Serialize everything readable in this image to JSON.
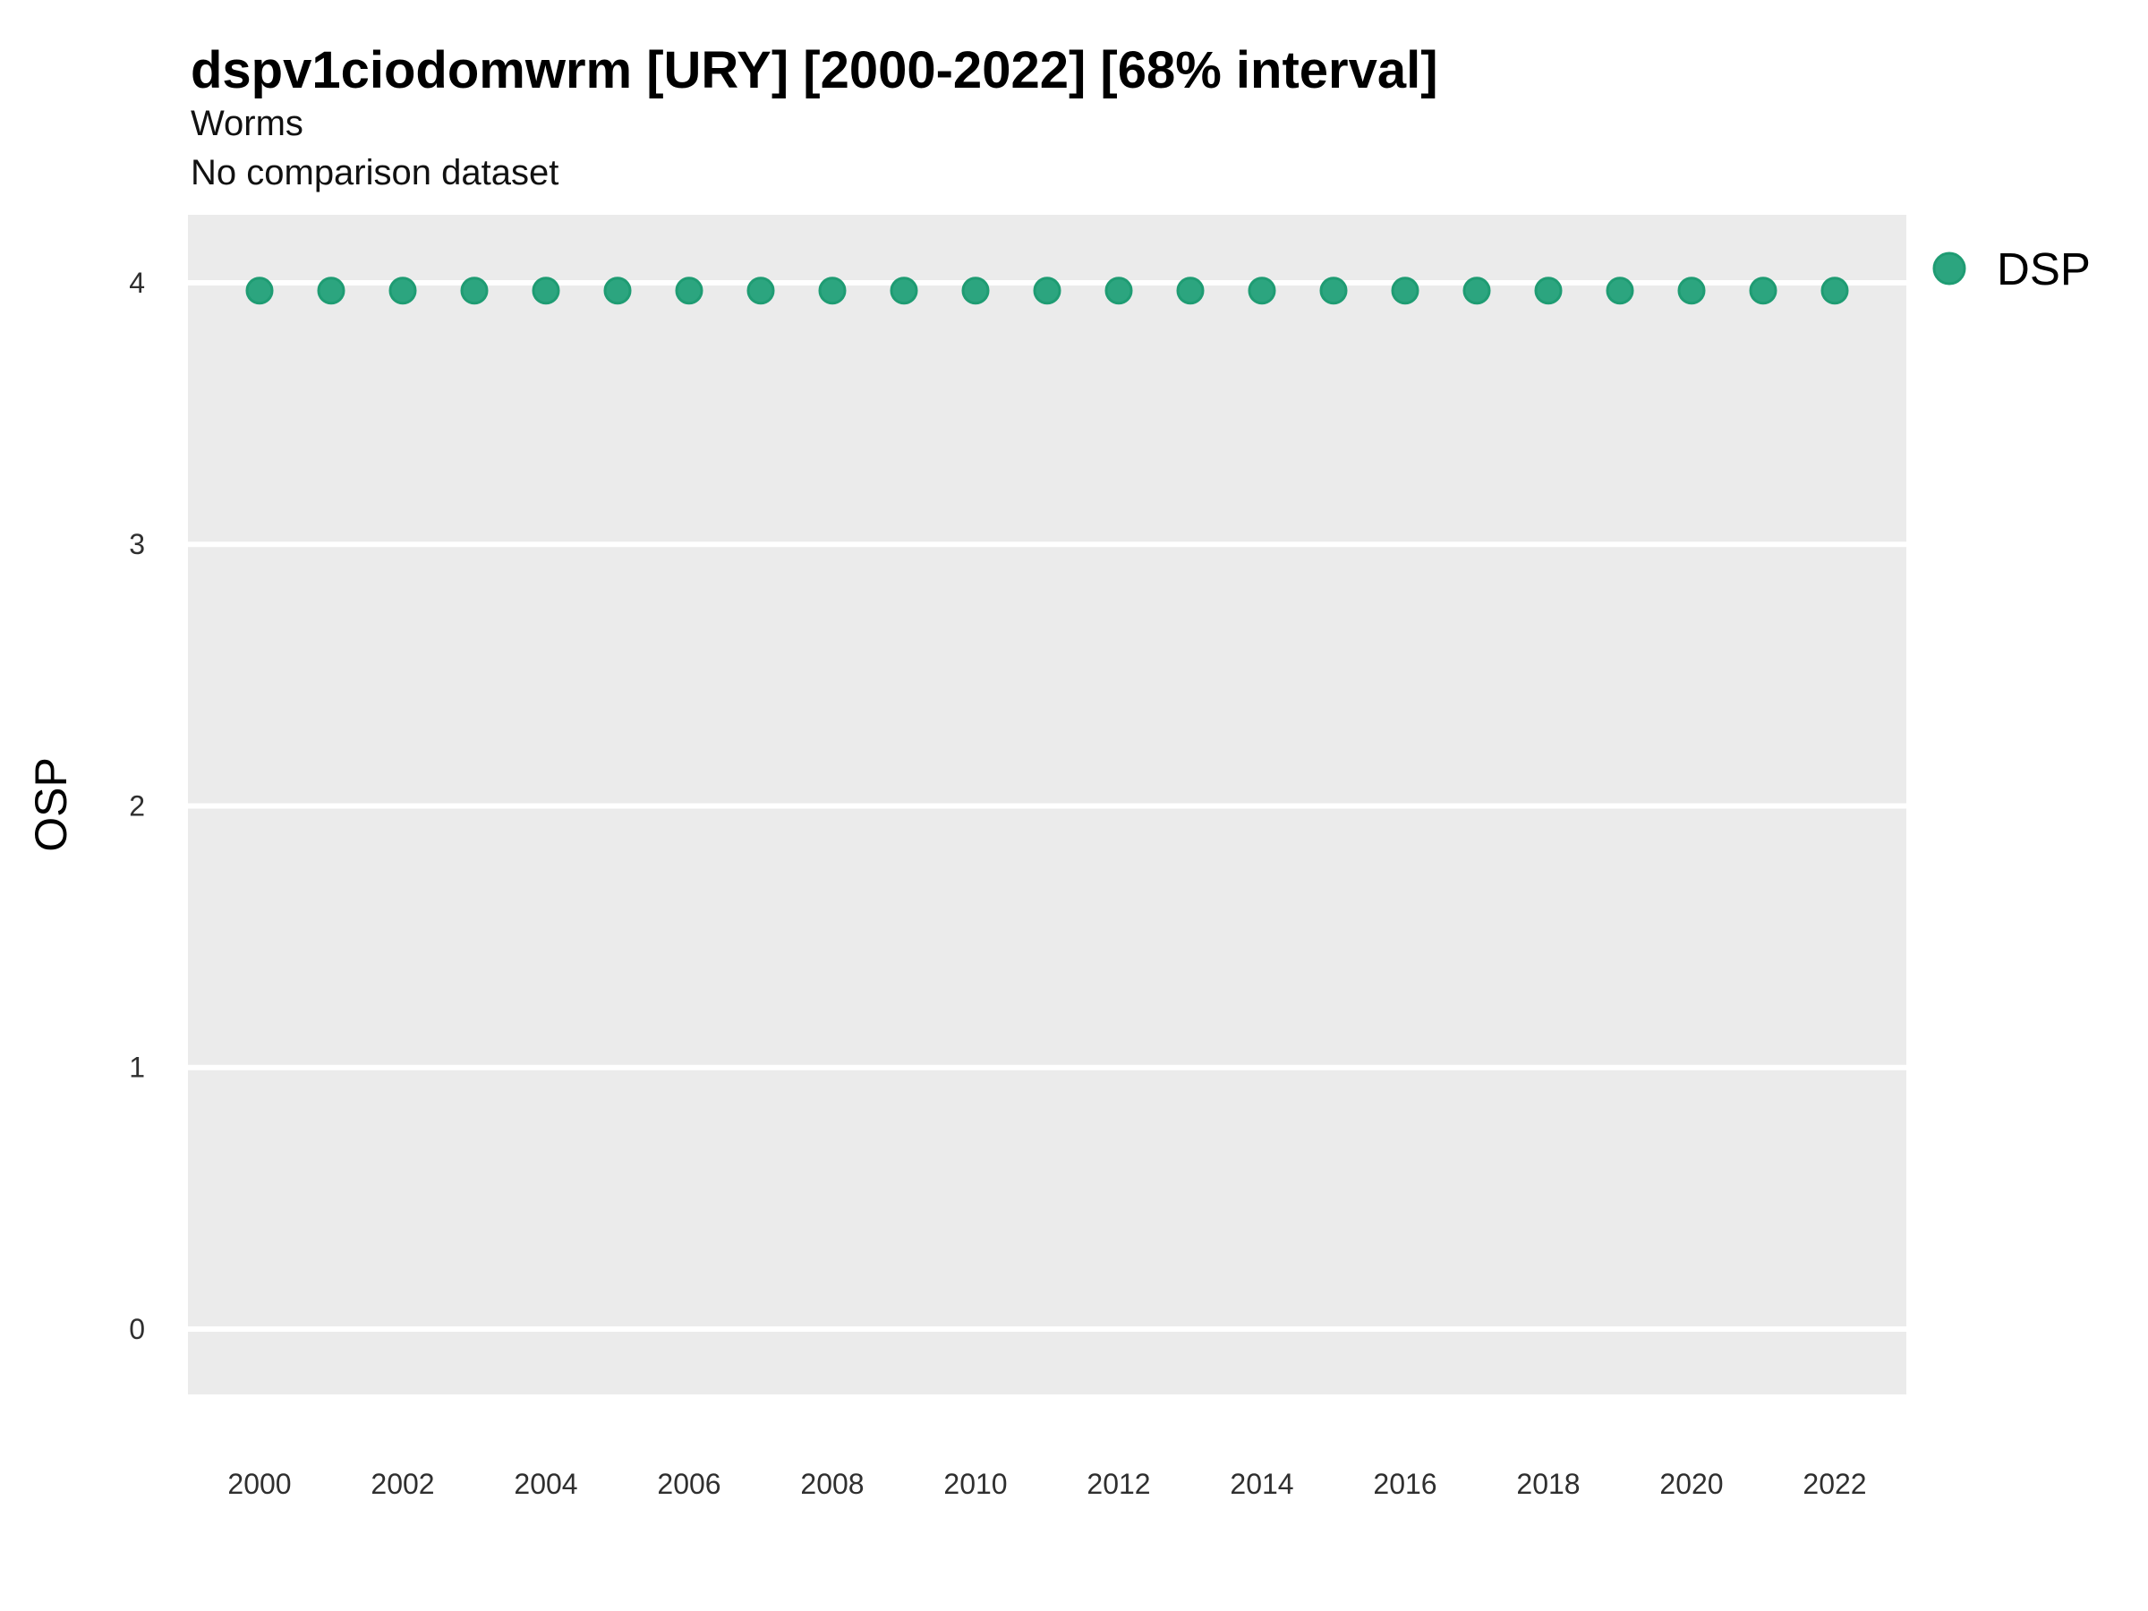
{
  "title": "dspv1ciodomwrm [URY] [2000-2022] [68% interval]",
  "subtitle1": "Worms",
  "subtitle2": "No comparison dataset",
  "legend": {
    "items": [
      {
        "label": "DSP",
        "marker_color": "#2CA57F"
      }
    ]
  },
  "chart_data": {
    "type": "scatter",
    "title": "dspv1ciodomwrm [URY] [2000-2022] [68% interval]",
    "subtitle_lines": [
      "Worms",
      "No comparison dataset"
    ],
    "xlabel": "",
    "ylabel": "OSP",
    "x": [
      2000,
      2001,
      2002,
      2003,
      2004,
      2005,
      2006,
      2007,
      2008,
      2009,
      2010,
      2011,
      2012,
      2013,
      2014,
      2015,
      2016,
      2017,
      2018,
      2019,
      2020,
      2021,
      2022
    ],
    "series": [
      {
        "name": "DSP",
        "values": [
          3.97,
          3.97,
          3.97,
          3.97,
          3.97,
          3.97,
          3.97,
          3.97,
          3.97,
          3.97,
          3.97,
          3.97,
          3.97,
          3.97,
          3.97,
          3.97,
          3.97,
          3.97,
          3.97,
          3.97,
          3.97,
          3.97,
          3.97
        ]
      }
    ],
    "xlim": [
      1999,
      2023
    ],
    "ylim": [
      -0.25,
      4.26
    ],
    "xticks": [
      2000,
      2002,
      2004,
      2006,
      2008,
      2010,
      2012,
      2014,
      2016,
      2018,
      2020,
      2022
    ],
    "yticks": [
      0,
      1,
      2,
      3,
      4
    ],
    "grid": "major-horizontal only, white lines on gray panel",
    "legend_position": "right",
    "colors": {
      "point_fill": "#2CA57F",
      "point_stroke": "#1F9C73",
      "panel_bg": "#EBEBEB",
      "gridline": "#FFFFFF",
      "text": "#000000",
      "tick_text": "#2F2F2F"
    }
  }
}
